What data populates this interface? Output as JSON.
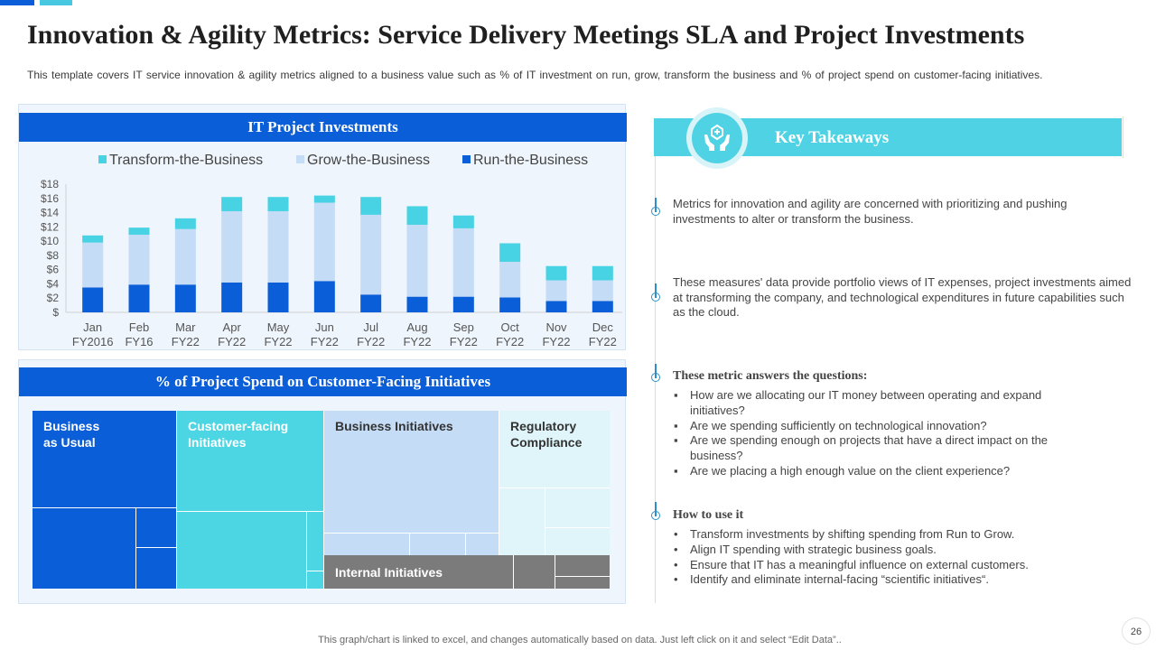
{
  "header": {
    "title": "Innovation & Agility Metrics: Service Delivery Meetings SLA and Project Investments",
    "subtitle": "This template covers IT service innovation  & agility metrics aligned to a business value  such as % of IT investment on run, grow, transform the business and % of project spend on customer-facing initiatives."
  },
  "colors": {
    "transform": "#47d3e3",
    "grow": "#c4dcf6",
    "run": "#0a5ed8",
    "header_blue": "#0a5ed8",
    "accent_teal": "#4fd3e4"
  },
  "chart_data": {
    "type": "bar",
    "stacked": true,
    "title": "IT Project Investments",
    "categories": [
      "Jan FY2016",
      "Feb FY16",
      "Mar FY22",
      "Apr FY22",
      "May FY22",
      "Jun FY22",
      "Jul FY22",
      "Aug FY22",
      "Sep FY22",
      "Oct FY22",
      "Nov FY22",
      "Dec FY22"
    ],
    "category_lines": [
      [
        "Jan",
        "FY2016"
      ],
      [
        "Feb",
        "FY16"
      ],
      [
        "Mar",
        "FY22"
      ],
      [
        "Apr",
        "FY22"
      ],
      [
        "May",
        "FY22"
      ],
      [
        "Jun",
        "FY22"
      ],
      [
        "Jul",
        "FY22"
      ],
      [
        "Aug",
        "FY22"
      ],
      [
        "Sep",
        "FY22"
      ],
      [
        "Oct",
        "FY22"
      ],
      [
        "Nov",
        "FY22"
      ],
      [
        "Dec",
        "FY22"
      ]
    ],
    "series": [
      {
        "name": "Run-the-Business",
        "values": [
          3.5,
          3.9,
          3.9,
          4.2,
          4.2,
          4.4,
          2.5,
          2.2,
          2.2,
          2.1,
          1.6,
          1.6
        ]
      },
      {
        "name": "Grow-the-Business",
        "values": [
          6.3,
          7.0,
          7.8,
          10.0,
          10.0,
          11.0,
          11.2,
          10.1,
          9.6,
          5.0,
          2.9,
          2.9
        ]
      },
      {
        "name": "Transform-the-Business",
        "values": [
          1.0,
          1.0,
          1.5,
          2.0,
          2.0,
          1.0,
          2.5,
          2.6,
          1.8,
          2.6,
          2.0,
          2.0
        ]
      }
    ],
    "legend": [
      "Transform-the-Business",
      "Grow-the-Business",
      "Run-the-Business"
    ],
    "legend_position": "top",
    "ylim": [
      0,
      18
    ],
    "yticks": [
      "$",
      "$2",
      "$4",
      "$6",
      "$8",
      "$10",
      "$12",
      "$14",
      "$16",
      "$18"
    ],
    "xlabel": "",
    "ylabel": ""
  },
  "treemap": {
    "title": "% of Project Spend on Customer-Facing Initiatives",
    "labels": {
      "bau": [
        "Business",
        "as Usual"
      ],
      "cfi": [
        "Customer-facing",
        "Initiatives"
      ],
      "bi": "Business Initiatives",
      "rc": [
        "Regulatory",
        "Compliance"
      ],
      "ii": "Internal Initiatives"
    }
  },
  "takeaways": {
    "title": "Key Takeaways",
    "para1": "Metrics for innovation and agility are concerned with prioritizing and pushing investments to alter or transform the business.",
    "para2": "These measures' data provide portfolio views of IT expenses, project investments aimed at transforming the company, and technological expenditures in future capabilities such as the cloud.",
    "questions_heading": "These metric  answers the questions:",
    "questions": [
      "How are we allocating our IT money between operating and expand initiatives?",
      "Are we spending sufficiently on technological innovation?",
      "Are we spending enough on projects that have a direct impact on the business?",
      "Are we placing a high enough value on the client experience?"
    ],
    "howto_heading": "How to use it",
    "howto": [
      "Transform investments by shifting spending from Run to Grow.",
      "Align IT spending with strategic business goals.",
      "Ensure that IT has a meaningful influence on external customers.",
      "Identify and eliminate internal-facing “scientific initiatives“."
    ],
    "bullet_square": "▪",
    "bullet_dot": "•"
  },
  "footer": {
    "note": "This graph/chart is linked to excel,  and changes automatically based on data. Just left click on it and select “Edit Data”..",
    "page_number": "26"
  }
}
